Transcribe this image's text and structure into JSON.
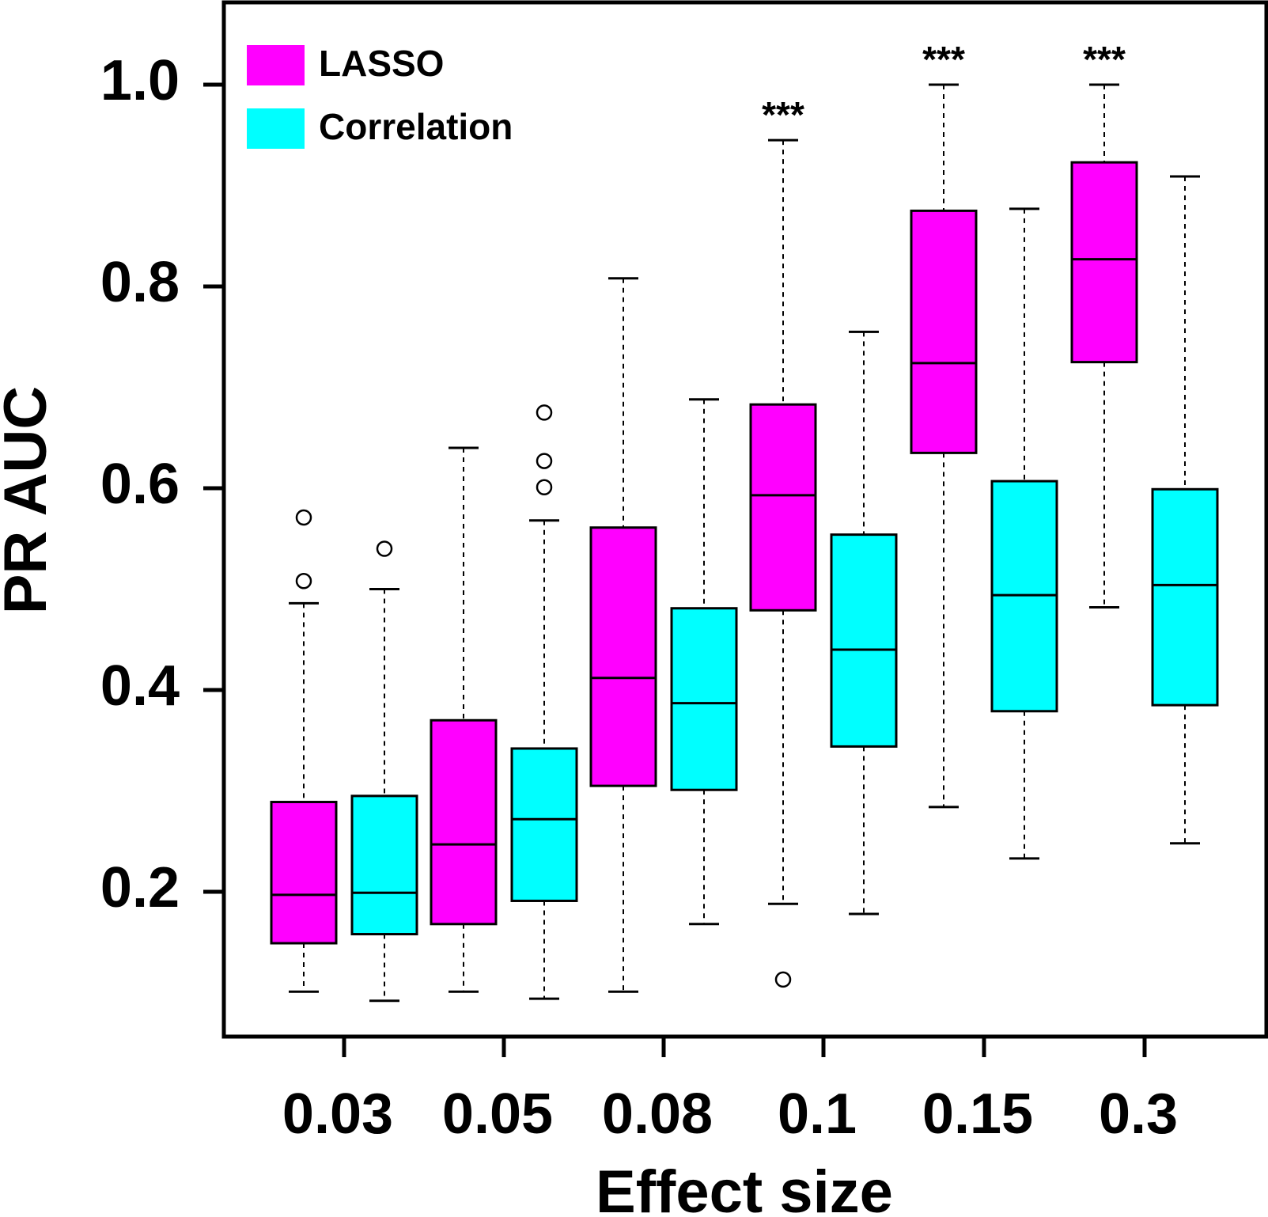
{
  "chart_data": {
    "type": "box",
    "xlabel": "Effect size",
    "ylabel": "PR AUC",
    "categories": [
      "0.03",
      "0.05",
      "0.08",
      "0.1",
      "0.15",
      "0.3"
    ],
    "ylim": [
      0.06,
      1.08
    ],
    "yticks": [
      "0.2",
      "0.4",
      "0.6",
      "0.8",
      "1.0"
    ],
    "grid": false,
    "legend_position": "top-left",
    "colors": {
      "LASSO": "#ff00ff",
      "Correlation": "#00ffff"
    },
    "significance": [
      "",
      "",
      "",
      "***",
      "***",
      "***"
    ],
    "series": [
      {
        "name": "LASSO",
        "boxes": [
          {
            "min": 0.101,
            "q1": 0.149,
            "median": 0.197,
            "q3": 0.289,
            "max": 0.486,
            "outliers": [
              0.508,
              0.571
            ]
          },
          {
            "min": 0.101,
            "q1": 0.168,
            "median": 0.247,
            "q3": 0.37,
            "max": 0.64,
            "outliers": []
          },
          {
            "min": 0.101,
            "q1": 0.305,
            "median": 0.412,
            "q3": 0.561,
            "max": 0.808,
            "outliers": []
          },
          {
            "min": 0.188,
            "q1": 0.479,
            "median": 0.593,
            "q3": 0.683,
            "max": 0.945,
            "outliers": [
              0.113
            ]
          },
          {
            "min": 0.284,
            "q1": 0.635,
            "median": 0.724,
            "q3": 0.875,
            "max": 1.0,
            "outliers": []
          },
          {
            "min": 0.482,
            "q1": 0.725,
            "median": 0.827,
            "q3": 0.923,
            "max": 1.0,
            "outliers": []
          }
        ]
      },
      {
        "name": "Correlation",
        "boxes": [
          {
            "min": 0.092,
            "q1": 0.158,
            "median": 0.199,
            "q3": 0.295,
            "max": 0.5,
            "outliers": [
              0.54
            ]
          },
          {
            "min": 0.094,
            "q1": 0.191,
            "median": 0.272,
            "q3": 0.342,
            "max": 0.568,
            "outliers": [
              0.601,
              0.627,
              0.675
            ]
          },
          {
            "min": 0.168,
            "q1": 0.301,
            "median": 0.387,
            "q3": 0.481,
            "max": 0.688,
            "outliers": []
          },
          {
            "min": 0.178,
            "q1": 0.344,
            "median": 0.44,
            "q3": 0.554,
            "max": 0.755,
            "outliers": []
          },
          {
            "min": 0.233,
            "q1": 0.379,
            "median": 0.494,
            "q3": 0.607,
            "max": 0.877,
            "outliers": []
          },
          {
            "min": 0.248,
            "q1": 0.385,
            "median": 0.504,
            "q3": 0.599,
            "max": 0.909,
            "outliers": []
          }
        ]
      }
    ]
  }
}
